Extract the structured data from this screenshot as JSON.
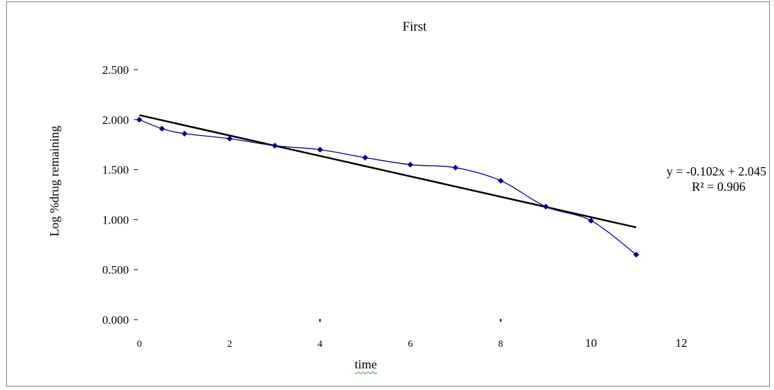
{
  "chart_data": {
    "type": "scatter",
    "title": "First",
    "xlabel": "time",
    "ylabel": "Log %drug remaining",
    "xlim": [
      0,
      12
    ],
    "ylim": [
      0,
      2.5
    ],
    "x_ticks": [
      "0",
      "2",
      "4",
      "6",
      "8",
      "10",
      "12"
    ],
    "y_ticks": [
      "0.000",
      "0.500",
      "1.000",
      "1.500",
      "2.000",
      "2.500"
    ],
    "grid": false,
    "series": [
      {
        "color": "#00008b",
        "x": [
          0,
          0.5,
          1,
          2,
          3,
          4,
          5,
          6,
          7,
          8,
          9,
          10,
          11
        ],
        "y": [
          2.0,
          1.91,
          1.86,
          1.81,
          1.74,
          1.7,
          1.62,
          1.55,
          1.52,
          1.39,
          1.13,
          0.99,
          0.65
        ]
      }
    ],
    "trendline": {
      "color": "#000000",
      "slope": -0.102,
      "intercept": 2.045,
      "x_range": [
        0,
        11
      ],
      "equation": "y = -0.102x + 2.045",
      "r_squared": "R² = 0.906"
    }
  }
}
